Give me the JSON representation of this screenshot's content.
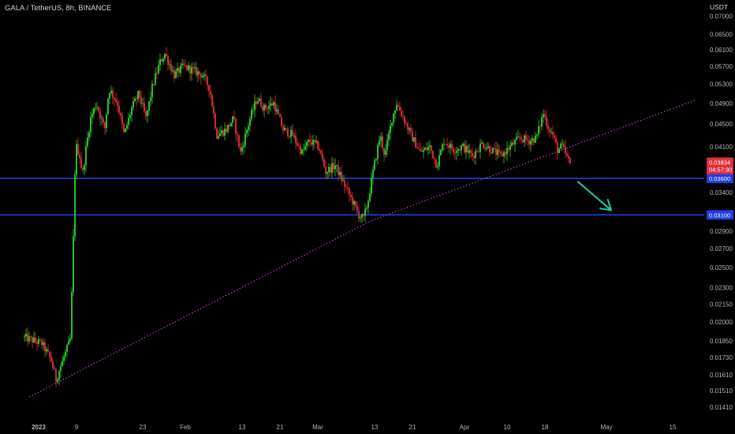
{
  "header": {
    "title": "GALA / TetherUS, 8h, BINANCE",
    "unit": "USDT"
  },
  "colors": {
    "background": "#000000",
    "up": "#2fd32f",
    "down": "#e0303a",
    "wick": "#c8c8c8",
    "trendline": "#c53bd6",
    "level_line": "#1f3fe0",
    "arrow": "#1fc9a0",
    "price_tag": "#e0303a",
    "level_tag": "#1f3fe0"
  },
  "chart_data": {
    "type": "candlestick",
    "title": "GALA / TetherUS, 8h, BINANCE",
    "y_scale": "log",
    "ylim": [
      0.0135,
      0.072
    ],
    "y_ticks": [
      {
        "value": 0.07,
        "label": "0.07000"
      },
      {
        "value": 0.065,
        "label": "0.06500"
      },
      {
        "value": 0.061,
        "label": "0.06100"
      },
      {
        "value": 0.057,
        "label": "0.05700"
      },
      {
        "value": 0.053,
        "label": "0.05300"
      },
      {
        "value": 0.049,
        "label": "0.04900"
      },
      {
        "value": 0.045,
        "label": "0.04500"
      },
      {
        "value": 0.041,
        "label": "0.04100"
      },
      {
        "value": 0.034,
        "label": "0.03400"
      },
      {
        "value": 0.029,
        "label": "0.02900"
      },
      {
        "value": 0.027,
        "label": "0.02700"
      },
      {
        "value": 0.025,
        "label": "0.02500"
      },
      {
        "value": 0.023,
        "label": "0.02300"
      },
      {
        "value": 0.0215,
        "label": "0.02150"
      },
      {
        "value": 0.02,
        "label": "0.02000"
      },
      {
        "value": 0.0185,
        "label": "0.01850"
      },
      {
        "value": 0.0173,
        "label": "0.01730"
      },
      {
        "value": 0.0161,
        "label": "0.01610"
      },
      {
        "value": 0.0151,
        "label": "0.01510"
      },
      {
        "value": 0.0141,
        "label": "0.01410"
      }
    ],
    "x_ticks": [
      {
        "day": 0,
        "label": "2023",
        "bold": true
      },
      {
        "day": 8,
        "label": "9"
      },
      {
        "day": 22,
        "label": "23"
      },
      {
        "day": 31,
        "label": "Feb"
      },
      {
        "day": 43,
        "label": "13"
      },
      {
        "day": 51,
        "label": "21"
      },
      {
        "day": 59,
        "label": "Mar"
      },
      {
        "day": 71,
        "label": "13"
      },
      {
        "day": 79,
        "label": "21"
      },
      {
        "day": 90,
        "label": "Apr"
      },
      {
        "day": 99,
        "label": "10"
      },
      {
        "day": 107,
        "label": "18"
      },
      {
        "day": 120,
        "label": "May"
      },
      {
        "day": 134,
        "label": "15"
      }
    ],
    "keypoints": [
      [
        -3,
        0.0188
      ],
      [
        1,
        0.0183
      ],
      [
        3,
        0.0171
      ],
      [
        4,
        0.0158
      ],
      [
        6,
        0.0176
      ],
      [
        7,
        0.0186
      ],
      [
        7.5,
        0.0245
      ],
      [
        8,
        0.037
      ],
      [
        8.3,
        0.041
      ],
      [
        9,
        0.0395
      ],
      [
        9.6,
        0.0365
      ],
      [
        10.4,
        0.041
      ],
      [
        11.3,
        0.046
      ],
      [
        12.5,
        0.049
      ],
      [
        14.3,
        0.044
      ],
      [
        15.2,
        0.052
      ],
      [
        17,
        0.049
      ],
      [
        18.4,
        0.043
      ],
      [
        20,
        0.048
      ],
      [
        21.5,
        0.051
      ],
      [
        23,
        0.046
      ],
      [
        24.5,
        0.053
      ],
      [
        26,
        0.058
      ],
      [
        27,
        0.06
      ],
      [
        29,
        0.055
      ],
      [
        31,
        0.057
      ],
      [
        33,
        0.056
      ],
      [
        35,
        0.055
      ],
      [
        36.5,
        0.052
      ],
      [
        38,
        0.043
      ],
      [
        40,
        0.044
      ],
      [
        41.5,
        0.046
      ],
      [
        43,
        0.04
      ],
      [
        45,
        0.046
      ],
      [
        46.5,
        0.05
      ],
      [
        48,
        0.048
      ],
      [
        50,
        0.049
      ],
      [
        52,
        0.044
      ],
      [
        54,
        0.043
      ],
      [
        56,
        0.04
      ],
      [
        57.5,
        0.042
      ],
      [
        59.5,
        0.041
      ],
      [
        61,
        0.037
      ],
      [
        63,
        0.038
      ],
      [
        65,
        0.035
      ],
      [
        66.5,
        0.033
      ],
      [
        68,
        0.031
      ],
      [
        69,
        0.0305
      ],
      [
        70,
        0.033
      ],
      [
        71,
        0.037
      ],
      [
        72.5,
        0.043
      ],
      [
        73.5,
        0.0395
      ],
      [
        75,
        0.046
      ],
      [
        76,
        0.049
      ],
      [
        77,
        0.047
      ],
      [
        79,
        0.043
      ],
      [
        81,
        0.04
      ],
      [
        83,
        0.041
      ],
      [
        84.5,
        0.038
      ],
      [
        86,
        0.042
      ],
      [
        88,
        0.0405
      ],
      [
        90,
        0.041
      ],
      [
        92,
        0.0395
      ],
      [
        94,
        0.0415
      ],
      [
        96,
        0.0405
      ],
      [
        98,
        0.0395
      ],
      [
        100,
        0.041
      ],
      [
        102,
        0.0425
      ],
      [
        104,
        0.042
      ],
      [
        105.5,
        0.0425
      ],
      [
        107,
        0.047
      ],
      [
        108,
        0.0445
      ],
      [
        109,
        0.043
      ],
      [
        110,
        0.0405
      ],
      [
        111,
        0.041
      ],
      [
        112.5,
        0.0383
      ]
    ],
    "trendline": {
      "points": [
        [
          -2,
          0.0147
        ],
        [
          70,
          0.0302
        ],
        [
          139,
          0.0497
        ]
      ],
      "style": "dotted"
    },
    "levels": [
      {
        "value": 0.036,
        "label": "0.03600"
      },
      {
        "value": 0.031,
        "label": "0.03100"
      }
    ],
    "forecast_arrow": {
      "from": [
        114,
        0.0355
      ],
      "to": [
        121,
        0.0316
      ]
    },
    "last_price": {
      "value": 0.03834,
      "label": "0.03834",
      "countdown": "04:57:30"
    }
  }
}
